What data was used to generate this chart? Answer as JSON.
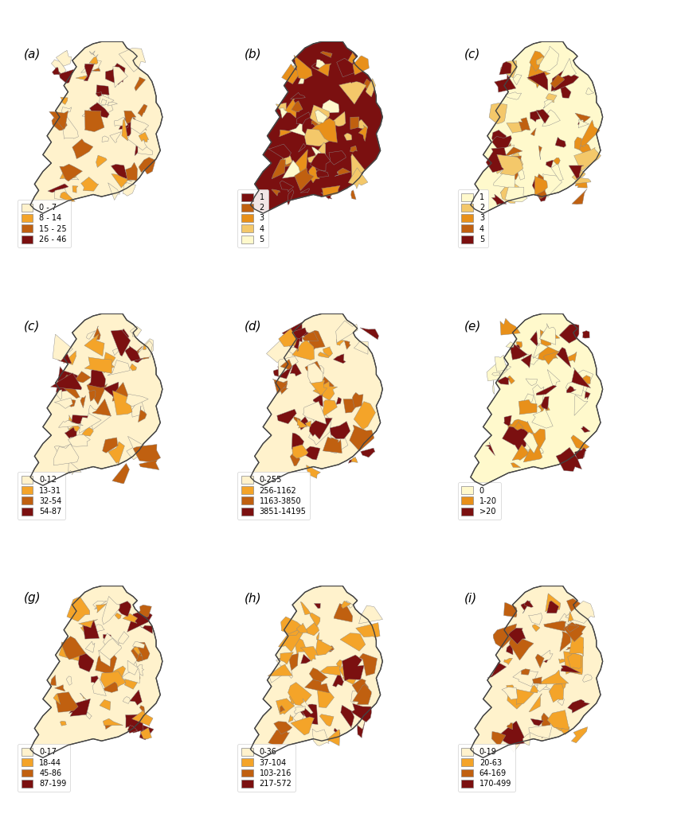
{
  "panels": [
    {
      "label": "(a)",
      "legend_entries": [
        {
          "text": "0 - 7",
          "color": "#FFF2CC"
        },
        {
          "text": "8 - 14",
          "color": "#F4A429"
        },
        {
          "text": "15 - 25",
          "color": "#C06010"
        },
        {
          "text": "26 - 46",
          "color": "#7B1010"
        }
      ]
    },
    {
      "label": "(b)",
      "legend_entries": [
        {
          "text": "1",
          "color": "#7B1010"
        },
        {
          "text": "2",
          "color": "#C06010"
        },
        {
          "text": "3",
          "color": "#E8901A"
        },
        {
          "text": "4",
          "color": "#F4C86A"
        },
        {
          "text": "5",
          "color": "#FFF9CC"
        }
      ]
    },
    {
      "label": "(c)",
      "legend_entries": [
        {
          "text": "1",
          "color": "#FFF9CC"
        },
        {
          "text": "2",
          "color": "#F4C86A"
        },
        {
          "text": "3",
          "color": "#E8901A"
        },
        {
          "text": "4",
          "color": "#C06010"
        },
        {
          "text": "5",
          "color": "#7B1010"
        }
      ]
    },
    {
      "label": "(c)",
      "legend_entries": [
        {
          "text": "0-12",
          "color": "#FFF2CC"
        },
        {
          "text": "13-31",
          "color": "#F4A429"
        },
        {
          "text": "32-54",
          "color": "#C06010"
        },
        {
          "text": "54-87",
          "color": "#7B1010"
        }
      ]
    },
    {
      "label": "(d)",
      "legend_entries": [
        {
          "text": "0-255",
          "color": "#FFF2CC"
        },
        {
          "text": "256-1162",
          "color": "#F4A429"
        },
        {
          "text": "1163-3850",
          "color": "#C06010"
        },
        {
          "text": "3851-14195",
          "color": "#7B1010"
        }
      ]
    },
    {
      "label": "(e)",
      "legend_entries": [
        {
          "text": "0",
          "color": "#FFF9CC"
        },
        {
          "text": "1-20",
          "color": "#E8901A"
        },
        {
          "text": ">20",
          "color": "#7B1010"
        }
      ]
    },
    {
      "label": "(g)",
      "legend_entries": [
        {
          "text": "0-17",
          "color": "#FFF2CC"
        },
        {
          "text": "18-44",
          "color": "#F4A429"
        },
        {
          "text": "45-86",
          "color": "#C06010"
        },
        {
          "text": "87-199",
          "color": "#7B1010"
        }
      ]
    },
    {
      "label": "(h)",
      "legend_entries": [
        {
          "text": "0-36",
          "color": "#FFF2CC"
        },
        {
          "text": "37-104",
          "color": "#F4A429"
        },
        {
          "text": "103-216",
          "color": "#C06010"
        },
        {
          "text": "217-572",
          "color": "#7B1010"
        }
      ]
    },
    {
      "label": "(i)",
      "legend_entries": [
        {
          "text": "0-19",
          "color": "#FFF2CC"
        },
        {
          "text": "20-63",
          "color": "#F4A429"
        },
        {
          "text": "64-169",
          "color": "#C06010"
        },
        {
          "text": "170-499",
          "color": "#7B1010"
        }
      ]
    }
  ],
  "background_color": "#FFFFFF",
  "map_bg": "#FFFFFF"
}
